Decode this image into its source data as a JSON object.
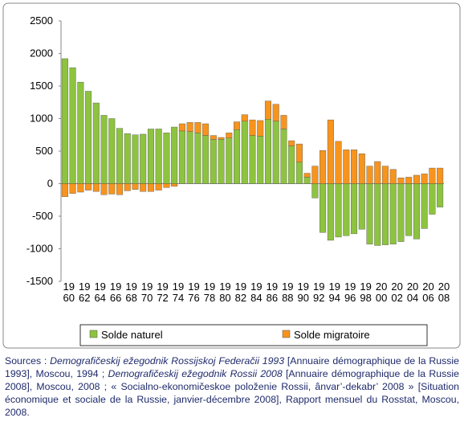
{
  "chart_data": {
    "type": "stacked-bar",
    "categories": [
      [
        "19",
        "60"
      ],
      null,
      [
        "19",
        "62"
      ],
      null,
      [
        "19",
        "64"
      ],
      null,
      [
        "19",
        "66"
      ],
      null,
      [
        "19",
        "68"
      ],
      null,
      [
        "19",
        "70"
      ],
      null,
      [
        "19",
        "72"
      ],
      null,
      [
        "19",
        "74"
      ],
      null,
      [
        "19",
        "76"
      ],
      null,
      [
        "19",
        "78"
      ],
      null,
      [
        "19",
        "80"
      ],
      null,
      [
        "19",
        "82"
      ],
      null,
      [
        "19",
        "84"
      ],
      null,
      [
        "19",
        "86"
      ],
      null,
      [
        "19",
        "88"
      ],
      null,
      [
        "19",
        "90"
      ],
      null,
      [
        "19",
        "92"
      ],
      null,
      [
        "19",
        "94"
      ],
      null,
      [
        "19",
        "96"
      ],
      null,
      [
        "19",
        "98"
      ],
      null,
      [
        "20",
        "00"
      ],
      null,
      [
        "20",
        "02"
      ],
      null,
      [
        "20",
        "04"
      ],
      null,
      [
        "20",
        "06"
      ],
      null,
      [
        "20",
        "08"
      ]
    ],
    "series": [
      {
        "name": "Solde naturel",
        "color": "#8dc33f",
        "values": [
          1920,
          1780,
          1560,
          1420,
          1240,
          1050,
          1000,
          850,
          770,
          750,
          760,
          840,
          840,
          780,
          870,
          810,
          800,
          780,
          740,
          680,
          680,
          700,
          830,
          960,
          740,
          730,
          990,
          960,
          840,
          580,
          330,
          100,
          -220,
          -750,
          -870,
          -820,
          -800,
          -770,
          -700,
          -930,
          -950,
          -940,
          -930,
          -890,
          -800,
          -850,
          -690,
          -470,
          -360
        ]
      },
      {
        "name": "Solde migratoire",
        "color": "#f7941d",
        "values": [
          -200,
          -150,
          -130,
          -100,
          -120,
          -170,
          -160,
          -170,
          -110,
          -90,
          -120,
          -120,
          -100,
          -60,
          -40,
          110,
          140,
          160,
          180,
          60,
          30,
          80,
          120,
          100,
          240,
          240,
          280,
          260,
          210,
          80,
          280,
          60,
          270,
          510,
          980,
          650,
          520,
          520,
          460,
          270,
          340,
          270,
          220,
          90,
          100,
          130,
          150,
          240,
          240
        ]
      }
    ],
    "ylim": [
      -1500,
      2500
    ],
    "yticks": [
      -1500,
      -1000,
      -500,
      0,
      500,
      1000,
      1500,
      2000,
      2500
    ],
    "grid": false,
    "source": [
      {
        "text": "Sources : ",
        "italic": false
      },
      {
        "text": "Demografičeskij ežegodnik Rossijskoj Federačii 1993",
        "italic": true
      },
      {
        "text": " [Annuaire démographique de la Russie 1993], Moscou, 1994 ; ",
        "italic": false
      },
      {
        "text": "Demografičeskij ežegodnik Rossii 2008",
        "italic": true
      },
      {
        "text": " [Annuaire démographique de la Russie 2008], Moscou, 2008 ; « Socialno-ekonomičeskoe položenie Rossii, ânvar’-dekabr’ 2008 » [Situation économique et sociale de la Russie, janvier-décembre 2008], Rapport mensuel du Rosstat, Moscou, 2008.",
        "italic": false
      }
    ]
  }
}
